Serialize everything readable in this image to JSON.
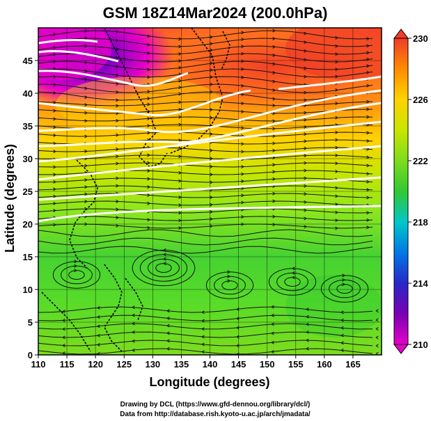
{
  "figure": {
    "title": "GSM 18Z14Mar2024 (200.0hPa)",
    "xlabel": "Longitude (degrees)",
    "ylabel": "Latitude  (degrees)",
    "credit_line1": "Drawing by DCL (https://www.gfd-dennou.org/library/dcl/)",
    "credit_line2": "Data from http://database.rish.kyoto-u.ac.jp/arch/jmadata/"
  },
  "chart_data": {
    "type": "heatmap",
    "title": "GSM 18Z14Mar2024 (200.0hPa)",
    "xlabel": "Longitude (degrees)",
    "ylabel": "Latitude  (degrees)",
    "xlim": [
      110,
      170
    ],
    "ylim": [
      0,
      50
    ],
    "xticks": [
      "110",
      "115",
      "120",
      "125",
      "130",
      "135",
      "140",
      "145",
      "150",
      "155",
      "160",
      "165"
    ],
    "yticks": [
      "0",
      "5",
      "10",
      "15",
      "20",
      "25",
      "30",
      "35",
      "40",
      "45"
    ],
    "colorbar": {
      "min": 210,
      "max": 230,
      "ticks": [
        "210",
        "214",
        "218",
        "222",
        "226",
        "230"
      ],
      "colors": [
        "#e600c8",
        "#3c00b4",
        "#0050dc",
        "#00b4e6",
        "#00d2a0",
        "#32c832",
        "#7ddc1e",
        "#c8e600",
        "#ffd200",
        "#ff8c00",
        "#f03c28"
      ]
    },
    "grid": true,
    "overlays": [
      "streamlines",
      "white contour lines",
      "coastlines"
    ]
  }
}
